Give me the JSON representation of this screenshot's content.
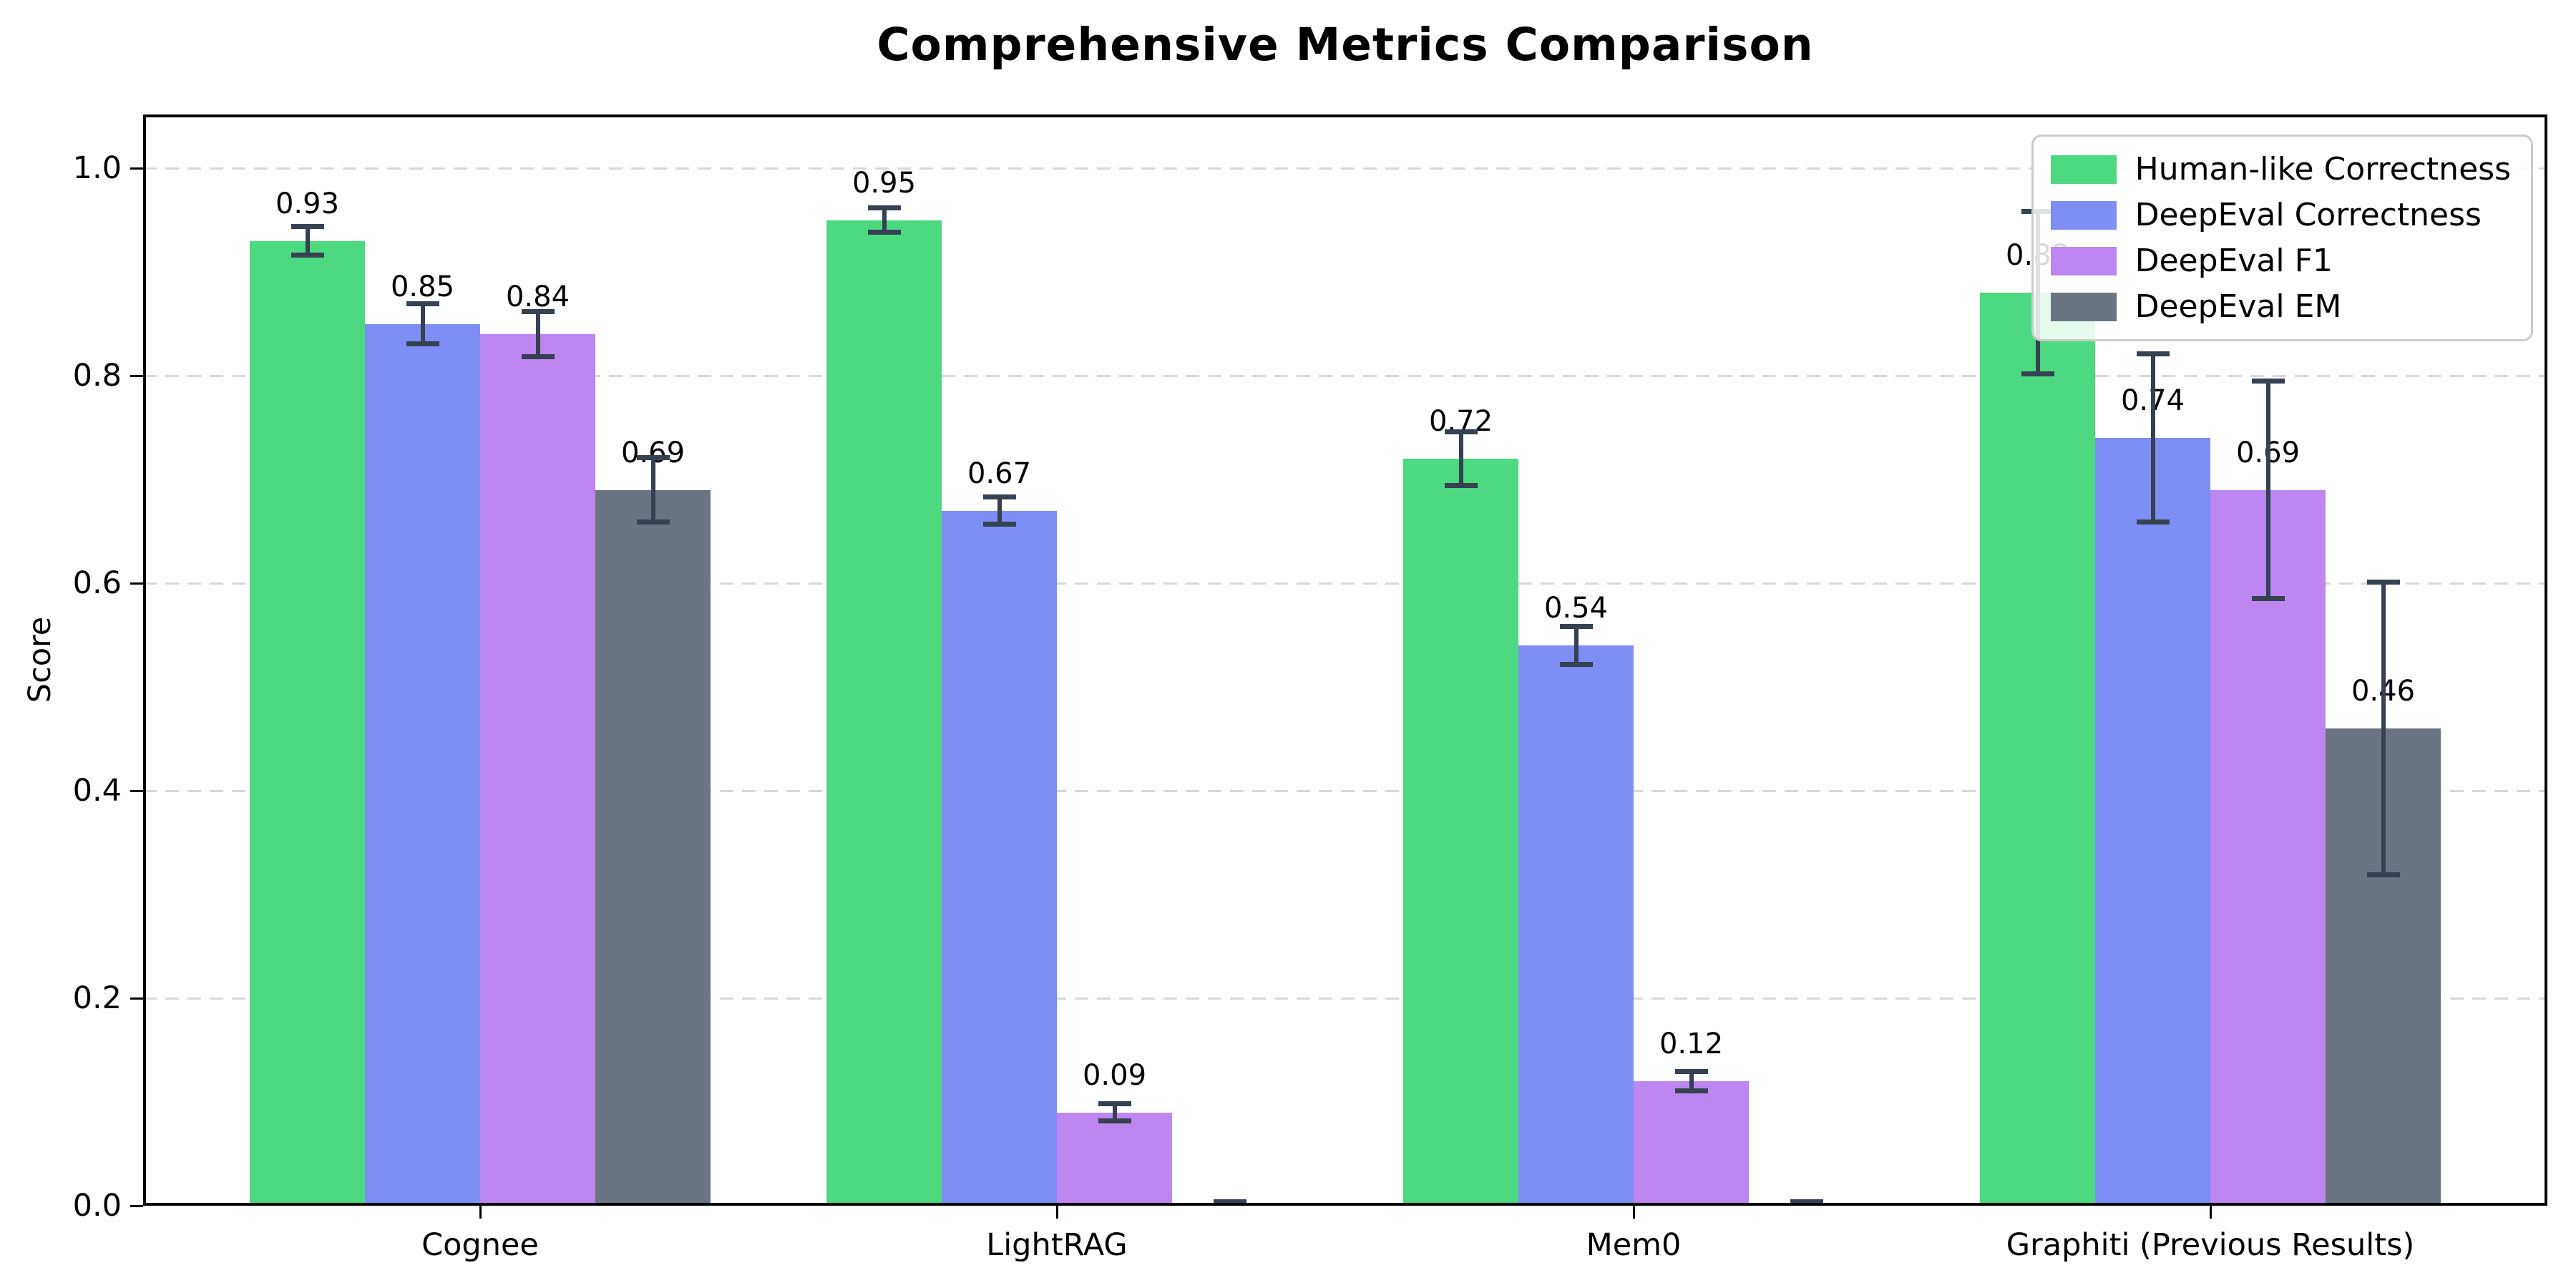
{
  "chart_data": {
    "type": "bar",
    "title": "Comprehensive Metrics Comparison",
    "ylabel": "Score",
    "xlabel": "",
    "categories": [
      "Cognee",
      "LightRAG",
      "Mem0",
      "Graphiti (Previous Results)"
    ],
    "series": [
      {
        "name": "Human-like Correctness",
        "color": "#4cd97f",
        "values": [
          0.93,
          0.95,
          0.72,
          0.88
        ],
        "errors": [
          0.014,
          0.012,
          0.026,
          0.078
        ]
      },
      {
        "name": "DeepEval Correctness",
        "color": "#7e8ef5",
        "values": [
          0.85,
          0.67,
          0.54,
          0.74
        ],
        "errors": [
          0.019,
          0.013,
          0.018,
          0.081
        ]
      },
      {
        "name": "DeepEval F1",
        "color": "#bd86f0",
        "values": [
          0.84,
          0.09,
          0.12,
          0.69
        ],
        "errors": [
          0.022,
          0.008,
          0.009,
          0.105
        ]
      },
      {
        "name": "DeepEval EM",
        "color": "#6a7482",
        "values": [
          0.69,
          0.0,
          0.0,
          0.46
        ],
        "errors": [
          0.031,
          0.004,
          0.004,
          0.141
        ]
      }
    ],
    "value_label_format": "2dp",
    "value_labels_hidden_when_zero": true,
    "yticks": [
      0.0,
      0.2,
      0.4,
      0.6,
      0.8,
      1.0
    ],
    "ylim": [
      0,
      1.052
    ],
    "grid": "horizontal-dashed",
    "legend_position": "upper-right",
    "colors": {
      "errorbar": "#364152",
      "grid": "#d9d9d9",
      "spine": "#000000",
      "background": "#ffffff"
    }
  }
}
